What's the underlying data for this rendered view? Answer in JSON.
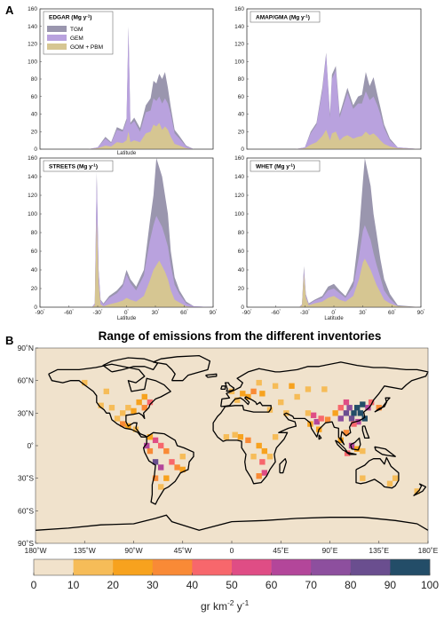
{
  "panel_letters": {
    "a": "A",
    "b": "B"
  },
  "colors": {
    "tgm": "#9a96ae",
    "gem": "#b9a2de",
    "gom_pbm": "#d6c692",
    "land": "#f0e2cc",
    "coast": "#000000"
  },
  "chart_data": [
    {
      "type": "area",
      "panel": "EDGAR",
      "legend_title": "EDGAR (Mg y-1)",
      "legend": [
        "TGM",
        "GEM",
        "GOM + PBM"
      ],
      "xlabel": "Latitude",
      "xlim": [
        -90,
        90
      ],
      "ylim": [
        0,
        160
      ],
      "yticks": [
        0,
        20,
        40,
        60,
        80,
        100,
        120,
        140,
        160
      ],
      "x": [
        -90,
        -40,
        -30,
        -22,
        -16,
        -10,
        -4,
        0,
        2,
        4,
        8,
        14,
        20,
        25,
        28,
        31,
        34,
        37,
        40,
        43,
        46,
        50,
        55,
        62,
        70,
        90
      ],
      "series": [
        {
          "name": "TGM",
          "values": [
            0,
            0,
            2,
            14,
            8,
            25,
            22,
            35,
            140,
            30,
            36,
            24,
            50,
            58,
            78,
            75,
            86,
            80,
            88,
            70,
            48,
            22,
            15,
            4,
            0,
            0
          ]
        },
        {
          "name": "GEM",
          "values": [
            0,
            0,
            2,
            12,
            7,
            22,
            20,
            32,
            138,
            28,
            32,
            20,
            42,
            44,
            58,
            55,
            60,
            52,
            58,
            52,
            40,
            18,
            12,
            3,
            0,
            0
          ]
        },
        {
          "name": "GOM + PBM",
          "values": [
            0,
            0,
            1,
            4,
            3,
            8,
            7,
            10,
            20,
            8,
            10,
            8,
            18,
            20,
            28,
            26,
            30,
            22,
            26,
            22,
            14,
            6,
            4,
            1,
            0,
            0
          ]
        }
      ]
    },
    {
      "type": "area",
      "panel": "AMAP/GMA",
      "legend_title": "AMAP/GMA (Mg y-1)",
      "xlabel": "",
      "xlim": [
        -90,
        90
      ],
      "ylim": [
        0,
        160
      ],
      "yticks": [
        0,
        20,
        40,
        60,
        80,
        100,
        120,
        140,
        160
      ],
      "x": [
        -90,
        -40,
        -30,
        -24,
        -18,
        -12,
        -8,
        -4,
        -2,
        2,
        6,
        10,
        14,
        20,
        25,
        29,
        33,
        37,
        41,
        45,
        48,
        52,
        58,
        66,
        90
      ],
      "series": [
        {
          "name": "TGM",
          "values": [
            0,
            0,
            2,
            20,
            30,
            70,
            110,
            40,
            85,
            95,
            40,
            55,
            70,
            50,
            60,
            62,
            88,
            72,
            82,
            62,
            48,
            28,
            12,
            2,
            0
          ]
        },
        {
          "name": "GEM",
          "values": [
            0,
            0,
            2,
            18,
            28,
            66,
            108,
            36,
            80,
            90,
            36,
            50,
            64,
            46,
            52,
            52,
            66,
            56,
            60,
            50,
            40,
            24,
            10,
            2,
            0
          ]
        },
        {
          "name": "GOM + PBM",
          "values": [
            0,
            0,
            1,
            5,
            8,
            15,
            22,
            10,
            18,
            20,
            10,
            14,
            16,
            12,
            14,
            15,
            20,
            16,
            18,
            14,
            10,
            6,
            3,
            1,
            0
          ]
        }
      ]
    },
    {
      "type": "area",
      "panel": "STREETS",
      "legend_title": "STREETS (Mg y-1)",
      "xlabel": "Latitude",
      "xlim": [
        -90,
        90
      ],
      "ylim": [
        0,
        160
      ],
      "yticks": [
        0,
        20,
        40,
        60,
        80,
        100,
        120,
        140,
        160
      ],
      "xticks": [
        -90,
        -60,
        -30,
        0,
        30,
        60,
        90
      ],
      "x": [
        -90,
        -36,
        -33,
        -31,
        -29,
        -27,
        -24,
        -18,
        -10,
        -4,
        0,
        4,
        10,
        18,
        24,
        28,
        31,
        34,
        37,
        40,
        43,
        46,
        50,
        55,
        62,
        70,
        90
      ],
      "series": [
        {
          "name": "TGM",
          "values": [
            0,
            0,
            4,
            145,
            40,
            8,
            4,
            12,
            18,
            25,
            40,
            30,
            22,
            40,
            90,
            120,
            160,
            150,
            140,
            120,
            100,
            60,
            32,
            18,
            6,
            1,
            0
          ]
        },
        {
          "name": "GEM",
          "values": [
            0,
            0,
            4,
            140,
            38,
            7,
            3,
            10,
            15,
            22,
            35,
            26,
            18,
            34,
            70,
            88,
            98,
            92,
            86,
            76,
            65,
            45,
            24,
            14,
            4,
            1,
            0
          ]
        },
        {
          "name": "GOM + PBM",
          "values": [
            0,
            0,
            2,
            95,
            25,
            3,
            1,
            3,
            5,
            7,
            10,
            8,
            6,
            12,
            28,
            40,
            45,
            50,
            44,
            38,
            30,
            18,
            8,
            5,
            1,
            0,
            0
          ]
        }
      ]
    },
    {
      "type": "area",
      "panel": "WHET",
      "legend_title": "WHET (Mg y-1)",
      "xlabel": "Latitude",
      "xlim": [
        -90,
        90
      ],
      "ylim": [
        0,
        160
      ],
      "yticks": [
        0,
        20,
        40,
        60,
        80,
        100,
        120,
        140,
        160
      ],
      "xticks": [
        -90,
        -60,
        -30,
        0,
        30,
        60,
        90
      ],
      "x": [
        -90,
        -36,
        -33,
        -31,
        -29,
        -26,
        -20,
        -12,
        -6,
        0,
        6,
        12,
        20,
        26,
        30,
        32,
        35,
        38,
        41,
        44,
        48,
        52,
        58,
        66,
        90
      ],
      "series": [
        {
          "name": "TGM",
          "values": [
            0,
            0,
            3,
            44,
            14,
            4,
            8,
            12,
            22,
            25,
            18,
            12,
            28,
            80,
            135,
            160,
            145,
            130,
            100,
            80,
            52,
            30,
            14,
            2,
            0
          ]
        },
        {
          "name": "GEM",
          "values": [
            0,
            0,
            3,
            40,
            13,
            3,
            7,
            10,
            18,
            20,
            15,
            10,
            22,
            55,
            82,
            88,
            80,
            72,
            58,
            46,
            32,
            18,
            9,
            1,
            0
          ]
        },
        {
          "name": "GOM + PBM",
          "values": [
            0,
            0,
            2,
            35,
            10,
            2,
            4,
            6,
            10,
            12,
            8,
            6,
            12,
            30,
            48,
            52,
            46,
            40,
            32,
            24,
            16,
            8,
            4,
            1,
            0
          ]
        }
      ]
    },
    {
      "type": "heatmap",
      "title": "Range of emissions from the different inventories",
      "xlim": [
        -180,
        180
      ],
      "ylim": [
        -90,
        90
      ],
      "xticks": [
        "180˚W",
        "135˚W",
        "90˚W",
        "45˚W",
        "0",
        "45˚E",
        "90˚E",
        "135˚E",
        "180˚E"
      ],
      "yticks": [
        "90˚N",
        "60˚N",
        "30˚N",
        "0˚",
        "30˚S",
        "60˚S",
        "90˚S"
      ],
      "colorbar": {
        "ticks": [
          "0",
          "10",
          "20",
          "30",
          "40",
          "50",
          "60",
          "70",
          "80",
          "90",
          "100"
        ],
        "colors": [
          "#f1e2cb",
          "#f6bc58",
          "#f7a21e",
          "#f98a36",
          "#f7676c",
          "#df4d85",
          "#b3469a",
          "#8d4f9e",
          "#6a4e8f",
          "#234d68"
        ],
        "unit": "gr km-2 y-1"
      },
      "cells": [
        {
          "lon": 115,
          "lat": 35,
          "value": 95
        },
        {
          "lon": 112,
          "lat": 30,
          "value": 92
        },
        {
          "lon": 118,
          "lat": 30,
          "value": 96
        },
        {
          "lon": 110,
          "lat": 25,
          "value": 88
        },
        {
          "lon": 105,
          "lat": 30,
          "value": 85
        },
        {
          "lon": 120,
          "lat": 38,
          "value": 90
        },
        {
          "lon": 122,
          "lat": 25,
          "value": 92
        },
        {
          "lon": 108,
          "lat": 35,
          "value": 78
        },
        {
          "lon": 100,
          "lat": 25,
          "value": 72
        },
        {
          "lon": 116,
          "lat": 22,
          "value": 65
        },
        {
          "lon": 125,
          "lat": 35,
          "value": 60
        },
        {
          "lon": 105,
          "lat": 40,
          "value": 55
        },
        {
          "lon": 112,
          "lat": 20,
          "value": 45
        },
        {
          "lon": 100,
          "lat": 35,
          "value": 40
        },
        {
          "lon": 128,
          "lat": 40,
          "value": 42
        },
        {
          "lon": 135,
          "lat": 35,
          "value": 35
        },
        {
          "lon": 95,
          "lat": 30,
          "value": 25
        },
        {
          "lon": 78,
          "lat": 22,
          "value": 68
        },
        {
          "lon": 75,
          "lat": 28,
          "value": 55
        },
        {
          "lon": 82,
          "lat": 25,
          "value": 48
        },
        {
          "lon": 88,
          "lat": 24,
          "value": 38
        },
        {
          "lon": 72,
          "lat": 20,
          "value": 28
        },
        {
          "lon": 80,
          "lat": 15,
          "value": 22
        },
        {
          "lon": 70,
          "lat": 30,
          "value": 18
        },
        {
          "lon": 105,
          "lat": 12,
          "value": 35
        },
        {
          "lon": 100,
          "lat": 5,
          "value": 28
        },
        {
          "lon": 110,
          "lat": 0,
          "value": 62
        },
        {
          "lon": 115,
          "lat": -3,
          "value": 22
        },
        {
          "lon": 120,
          "lat": -5,
          "value": 18
        },
        {
          "lon": 106,
          "lat": -7,
          "value": 45
        },
        {
          "lon": 28,
          "lat": 48,
          "value": 25
        },
        {
          "lon": 40,
          "lat": 55,
          "value": 18
        },
        {
          "lon": 55,
          "lat": 55,
          "value": 20
        },
        {
          "lon": 60,
          "lat": 45,
          "value": 15
        },
        {
          "lon": 70,
          "lat": 52,
          "value": 12
        },
        {
          "lon": 85,
          "lat": 52,
          "value": 14
        },
        {
          "lon": 20,
          "lat": 50,
          "value": 35
        },
        {
          "lon": 10,
          "lat": 48,
          "value": 22
        },
        {
          "lon": 15,
          "lat": 45,
          "value": 28
        },
        {
          "lon": 0,
          "lat": 50,
          "value": 18
        },
        {
          "lon": 5,
          "lat": 42,
          "value": 15
        },
        {
          "lon": 25,
          "lat": 58,
          "value": 12
        },
        {
          "lon": 45,
          "lat": 40,
          "value": 18
        },
        {
          "lon": 50,
          "lat": 30,
          "value": 15
        },
        {
          "lon": 35,
          "lat": 33,
          "value": 14
        },
        {
          "lon": 8,
          "lat": 8,
          "value": 22
        },
        {
          "lon": 3,
          "lat": 10,
          "value": 15
        },
        {
          "lon": -5,
          "lat": 8,
          "value": 18
        },
        {
          "lon": 15,
          "lat": 5,
          "value": 35
        },
        {
          "lon": 25,
          "lat": 0,
          "value": 28
        },
        {
          "lon": 30,
          "lat": -5,
          "value": 22
        },
        {
          "lon": 28,
          "lat": -15,
          "value": 45
        },
        {
          "lon": 30,
          "lat": -25,
          "value": 55
        },
        {
          "lon": 25,
          "lat": -28,
          "value": 32
        },
        {
          "lon": 35,
          "lat": -10,
          "value": 15
        },
        {
          "lon": 40,
          "lat": 8,
          "value": 18
        },
        {
          "lon": 20,
          "lat": -10,
          "value": 14
        },
        {
          "lon": -75,
          "lat": 40,
          "value": 45
        },
        {
          "lon": -80,
          "lat": 35,
          "value": 35
        },
        {
          "lon": -85,
          "lat": 40,
          "value": 28
        },
        {
          "lon": -90,
          "lat": 32,
          "value": 22
        },
        {
          "lon": -95,
          "lat": 35,
          "value": 18
        },
        {
          "lon": -100,
          "lat": 30,
          "value": 15
        },
        {
          "lon": -110,
          "lat": 35,
          "value": 14
        },
        {
          "lon": -120,
          "lat": 37,
          "value": 18
        },
        {
          "lon": -80,
          "lat": 45,
          "value": 25
        },
        {
          "lon": -100,
          "lat": 20,
          "value": 38
        },
        {
          "lon": -95,
          "lat": 18,
          "value": 28
        },
        {
          "lon": -88,
          "lat": 15,
          "value": 15
        },
        {
          "lon": -105,
          "lat": 25,
          "value": 18
        },
        {
          "lon": -115,
          "lat": 50,
          "value": 12
        },
        {
          "lon": -135,
          "lat": 58,
          "value": 12
        },
        {
          "lon": -70,
          "lat": 5,
          "value": 55
        },
        {
          "lon": -65,
          "lat": 0,
          "value": 45
        },
        {
          "lon": -75,
          "lat": -5,
          "value": 38
        },
        {
          "lon": -60,
          "lat": -5,
          "value": 35
        },
        {
          "lon": -70,
          "lat": -15,
          "value": 85
        },
        {
          "lon": -65,
          "lat": -20,
          "value": 62
        },
        {
          "lon": -55,
          "lat": -15,
          "value": 42
        },
        {
          "lon": -50,
          "lat": -20,
          "value": 35
        },
        {
          "lon": -60,
          "lat": -30,
          "value": 28
        },
        {
          "lon": -70,
          "lat": -30,
          "value": 32
        },
        {
          "lon": -65,
          "lat": -38,
          "value": 18
        },
        {
          "lon": -75,
          "lat": 8,
          "value": 22
        },
        {
          "lon": -78,
          "lat": 0,
          "value": 68
        },
        {
          "lon": -45,
          "lat": -10,
          "value": 18
        },
        {
          "lon": -45,
          "lat": -22,
          "value": 22
        },
        {
          "lon": 145,
          "lat": -35,
          "value": 15
        },
        {
          "lon": 150,
          "lat": -30,
          "value": 12
        },
        {
          "lon": 120,
          "lat": -30,
          "value": 14
        },
        {
          "lon": 170,
          "lat": -42,
          "value": 12
        }
      ]
    }
  ]
}
